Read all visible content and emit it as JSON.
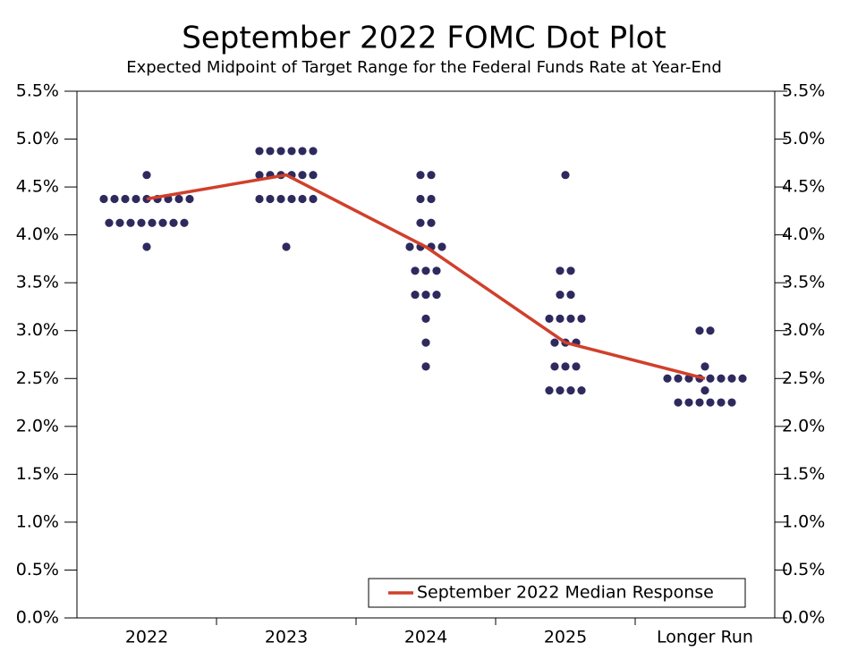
{
  "chart_data": {
    "type": "dot",
    "title": "September 2022 FOMC Dot Plot",
    "subtitle": "Expected Midpoint of Target Range for the Federal Funds Rate at Year-End",
    "categories": [
      "2022",
      "2023",
      "2024",
      "2025",
      "Longer Run"
    ],
    "dots": [
      [
        4.625,
        4.375,
        4.375,
        4.375,
        4.375,
        4.375,
        4.375,
        4.375,
        4.375,
        4.375,
        4.125,
        4.125,
        4.125,
        4.125,
        4.125,
        4.125,
        4.125,
        4.125,
        3.875
      ],
      [
        4.875,
        4.875,
        4.875,
        4.875,
        4.875,
        4.875,
        4.625,
        4.625,
        4.625,
        4.625,
        4.625,
        4.625,
        4.375,
        4.375,
        4.375,
        4.375,
        4.375,
        4.375,
        3.875
      ],
      [
        4.625,
        4.625,
        4.375,
        4.375,
        4.125,
        4.125,
        3.875,
        3.875,
        3.875,
        3.875,
        3.625,
        3.625,
        3.625,
        3.375,
        3.375,
        3.375,
        3.125,
        2.875,
        2.625
      ],
      [
        4.625,
        3.625,
        3.625,
        3.375,
        3.375,
        3.125,
        3.125,
        3.125,
        3.125,
        2.875,
        2.875,
        2.875,
        2.625,
        2.625,
        2.625,
        2.375,
        2.375,
        2.375,
        2.375
      ],
      [
        3.0,
        3.0,
        2.625,
        2.5,
        2.5,
        2.5,
        2.5,
        2.5,
        2.5,
        2.5,
        2.5,
        2.375,
        2.25,
        2.25,
        2.25,
        2.25,
        2.25,
        2.25
      ]
    ],
    "dot_color": "#2e2a5e",
    "series": [
      {
        "name": "September 2022 Median Response",
        "color": "#d0402b",
        "values": [
          4.375,
          4.625,
          3.875,
          2.875,
          2.5
        ]
      }
    ],
    "ylim": [
      0,
      5.5
    ],
    "yticks": [
      {
        "value": 0,
        "label": "0.0%"
      },
      {
        "value": 0.5,
        "label": "0.5%"
      },
      {
        "value": 1,
        "label": "1.0%"
      },
      {
        "value": 1.5,
        "label": "1.5%"
      },
      {
        "value": 2,
        "label": "2.0%"
      },
      {
        "value": 2.5,
        "label": "2.5%"
      },
      {
        "value": 3,
        "label": "3.0%"
      },
      {
        "value": 3.5,
        "label": "3.5%"
      },
      {
        "value": 4,
        "label": "4.0%"
      },
      {
        "value": 4.5,
        "label": "4.5%"
      },
      {
        "value": 5,
        "label": "5.0%"
      },
      {
        "value": 5.5,
        "label": "5.5%"
      }
    ],
    "y2lim": [
      0,
      5.5
    ],
    "y2ticks": [
      {
        "value": 0,
        "label": "0.0%"
      },
      {
        "value": 0.5,
        "label": "0.5%"
      },
      {
        "value": 1,
        "label": "1.0%"
      },
      {
        "value": 1.5,
        "label": "1.5%"
      },
      {
        "value": 2,
        "label": "2.0%"
      },
      {
        "value": 2.5,
        "label": "2.5%"
      },
      {
        "value": 3,
        "label": "3.0%"
      },
      {
        "value": 3.5,
        "label": "3.5%"
      },
      {
        "value": 4,
        "label": "4.0%"
      },
      {
        "value": 4.5,
        "label": "4.5%"
      },
      {
        "value": 5,
        "label": "5.0%"
      },
      {
        "value": 5.5,
        "label": "5.5%"
      }
    ],
    "legend": "lower right"
  }
}
